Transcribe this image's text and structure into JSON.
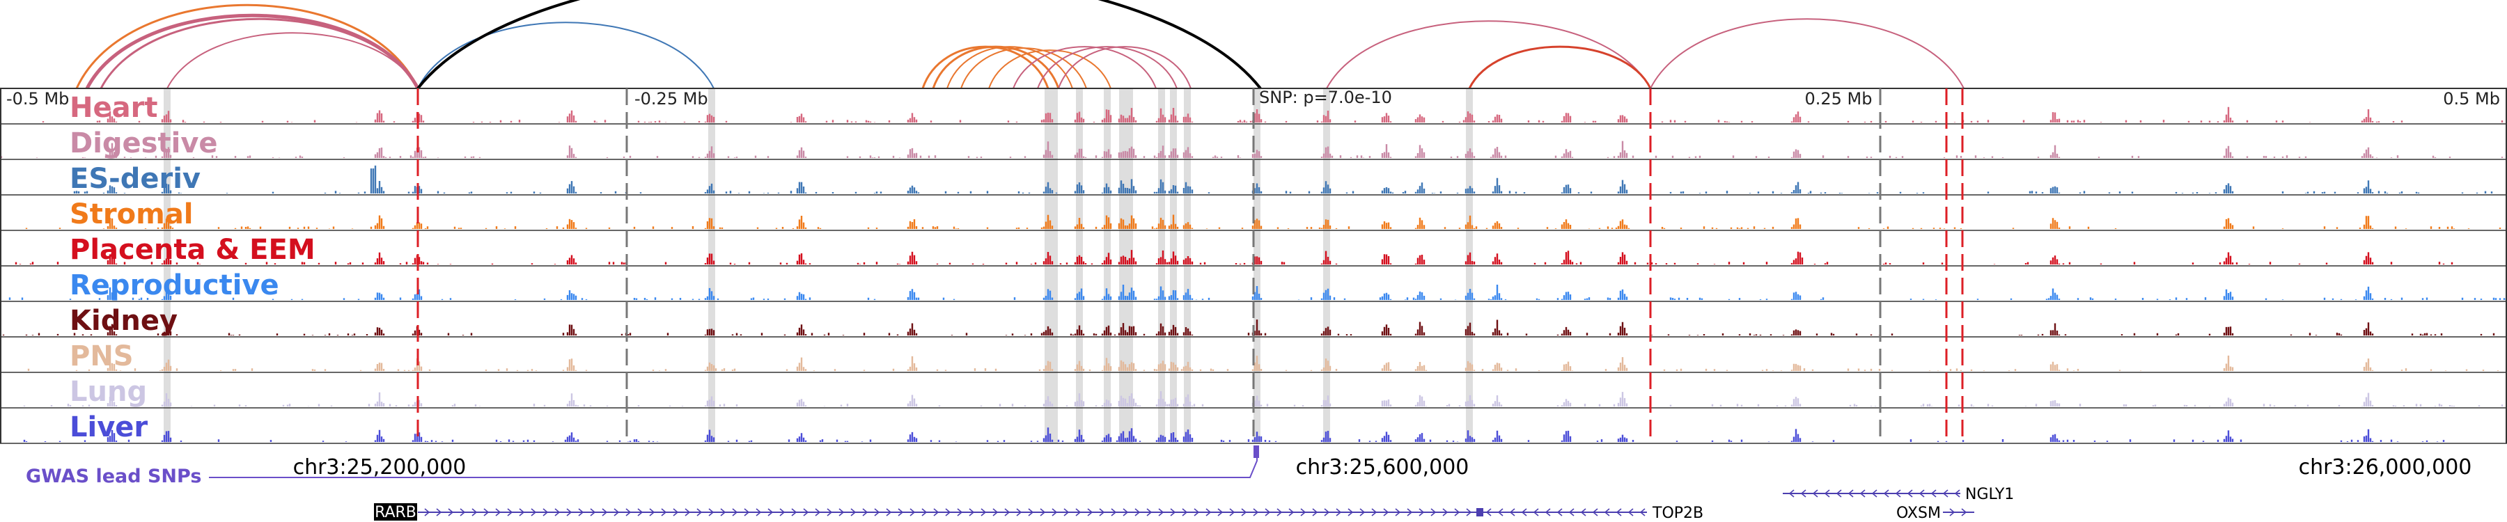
{
  "top_axis": {
    "ticks": [
      {
        "label": "-0.5 Mb",
        "anchor": "start",
        "mb": -0.5
      },
      {
        "label": "-0.25 Mb",
        "anchor": "start",
        "mb": -0.25
      },
      {
        "label": "SNP: p=7.0e-10",
        "anchor": "start",
        "mb": 0
      },
      {
        "label": "0.25 Mb",
        "anchor": "middle",
        "mb": 0.25
      },
      {
        "label": "0.5 Mb",
        "anchor": "end",
        "mb": 0.5
      }
    ]
  },
  "tracks": [
    {
      "name": "Heart",
      "color": "#d6687f"
    },
    {
      "name": "Digestive",
      "color": "#c98aa6"
    },
    {
      "name": "ES-deriv",
      "color": "#3f77b5"
    },
    {
      "name": "Stromal",
      "color": "#f07a1a"
    },
    {
      "name": "Placenta & EEM",
      "color": "#d40f1e"
    },
    {
      "name": "Reproductive",
      "color": "#3a88ef"
    },
    {
      "name": "Kidney",
      "color": "#6e0f12"
    },
    {
      "name": "PNS",
      "color": "#e3b99b"
    },
    {
      "name": "Lung",
      "color": "#ccc6e3"
    },
    {
      "name": "Liver",
      "color": "#4b4dd8"
    }
  ],
  "coordinates": [
    "chr3:25,200,000",
    "chr3:25,600,000",
    "chr3:26,000,000"
  ],
  "gwas": {
    "label": "GWAS lead SNPs",
    "color": "#6a4fc9"
  },
  "genes": [
    {
      "name": "RARB",
      "highlighted": true
    },
    {
      "name": "TOP2B",
      "highlighted": false
    },
    {
      "name": "NGLY1",
      "highlighted": false
    },
    {
      "name": "OXSM",
      "highlighted": false
    }
  ],
  "colors": {
    "red_dashed": "#dd1f26",
    "grey_dashed": "#777777",
    "highlight": "#dedede",
    "gene": "#4c3fb0"
  }
}
